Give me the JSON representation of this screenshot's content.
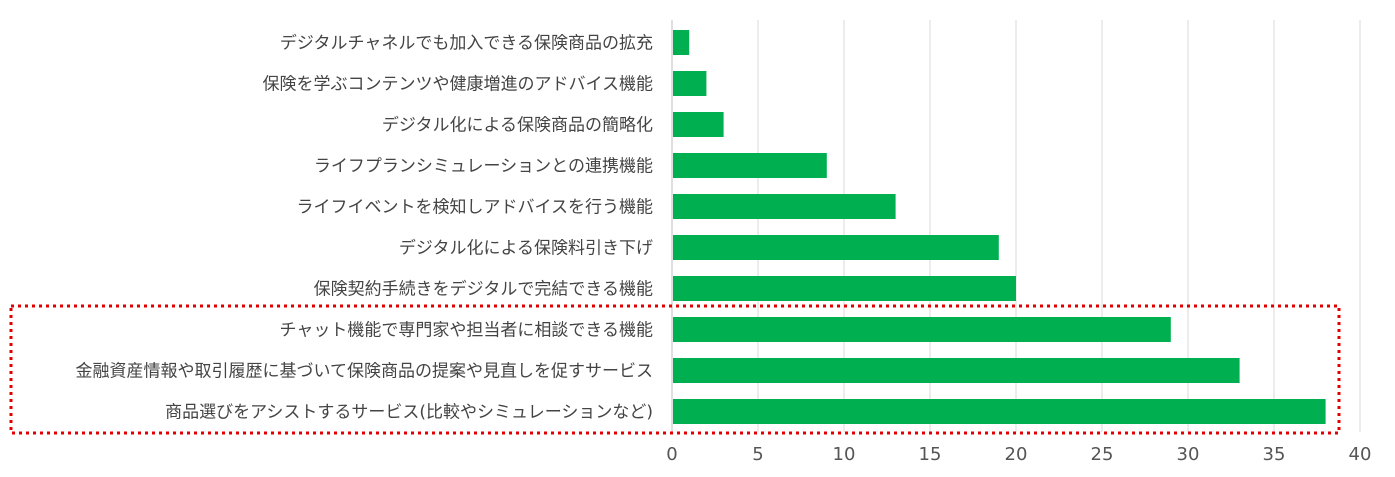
{
  "chart_data": {
    "type": "bar",
    "orientation": "horizontal",
    "categories": [
      "デジタルチャネルでも加入できる保険商品の拡充",
      "保険を学ぶコンテンツや健康増進のアドバイス機能",
      "デジタル化による保険商品の簡略化",
      "ライフプランシミュレーションとの連携機能",
      "ライフイベントを検知しアドバイスを行う機能",
      "デジタル化による保険料引き下げ",
      "保険契約手続きをデジタルで完結できる機能",
      "チャット機能で専門家や担当者に相談できる機能",
      "金融資産情報や取引履歴に基づいて保険商品の提案や見直しを促すサービス",
      "商品選びをアシストするサービス(比較やシミュレーションなど)"
    ],
    "values": [
      1,
      2,
      3,
      9,
      13,
      19,
      20,
      29,
      33,
      38
    ],
    "xlim": [
      0,
      40
    ],
    "xticks": [
      "0",
      "5",
      "10",
      "15",
      "20",
      "25",
      "30",
      "35",
      "40"
    ],
    "grid": true,
    "legend": "none",
    "highlighted_categories": [
      7,
      8,
      9
    ],
    "colors": {
      "bar": "#00b050",
      "highlight_box": "#e00000",
      "grid": "#d9d9d9",
      "text": "#444444"
    }
  }
}
